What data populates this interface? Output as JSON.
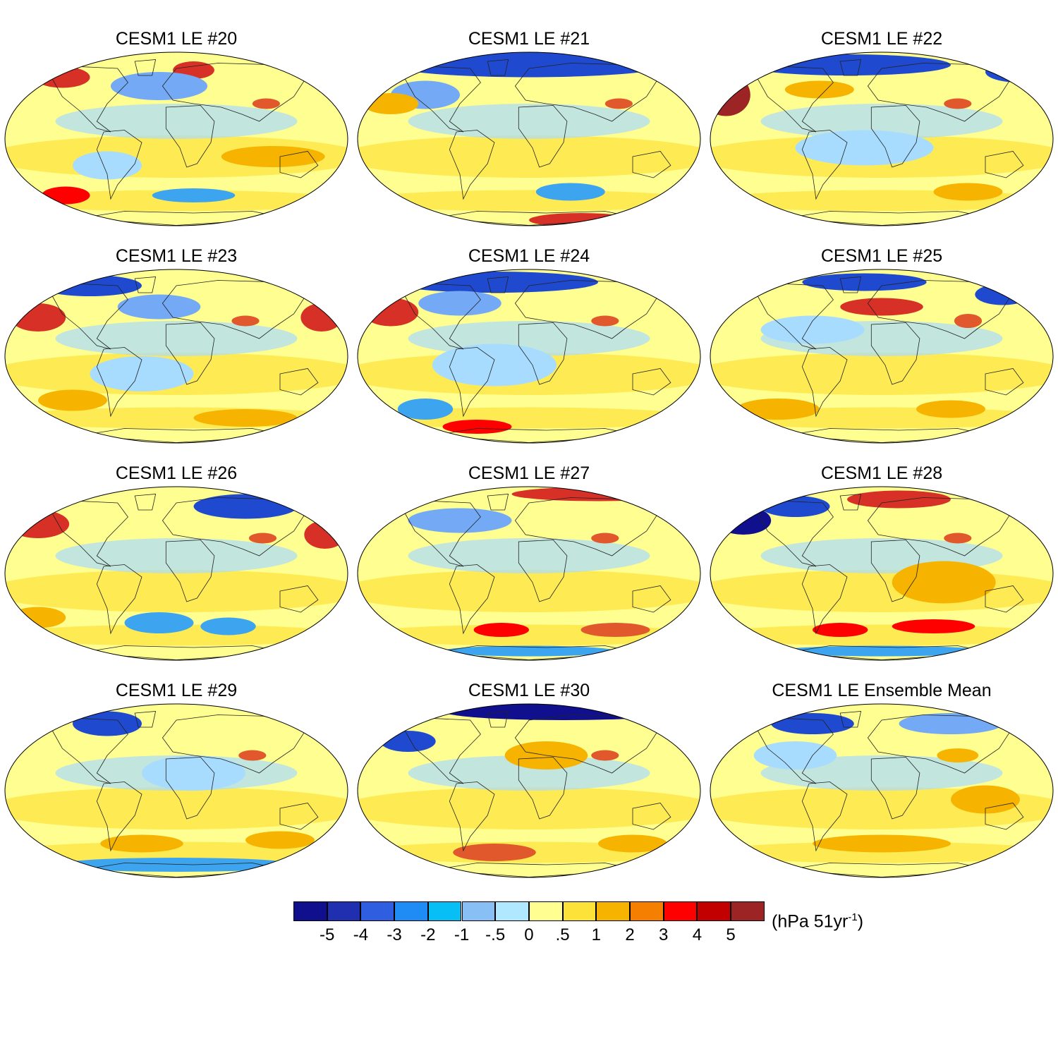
{
  "figure": {
    "panels": [
      {
        "title": "CESM1 LE #20",
        "blobs": [
          [
            "#d73027",
            0.17,
            0.15,
            0.08,
            0.06
          ],
          [
            "#d73027",
            0.55,
            0.11,
            0.06,
            0.05
          ],
          [
            "#74a9f5",
            0.45,
            0.2,
            0.14,
            0.08
          ],
          [
            "#e0582b",
            0.76,
            0.3,
            0.04,
            0.03
          ],
          [
            "#f6b400",
            0.78,
            0.6,
            0.15,
            0.06
          ],
          [
            "#fe0000",
            0.18,
            0.82,
            0.07,
            0.05
          ],
          [
            "#3da4f0",
            0.55,
            0.82,
            0.12,
            0.04
          ],
          [
            "#a8dcff",
            0.3,
            0.65,
            0.1,
            0.08
          ]
        ]
      },
      {
        "title": "CESM1 LE #21",
        "blobs": [
          [
            "#1f4ad0",
            0.5,
            0.08,
            0.4,
            0.07
          ],
          [
            "#74a9f5",
            0.2,
            0.25,
            0.1,
            0.08
          ],
          [
            "#e0582b",
            0.76,
            0.3,
            0.04,
            0.03
          ],
          [
            "#3da4f0",
            0.62,
            0.8,
            0.1,
            0.05
          ],
          [
            "#d73027",
            0.65,
            0.96,
            0.15,
            0.04
          ],
          [
            "#f6b400",
            0.1,
            0.3,
            0.08,
            0.06
          ]
        ]
      },
      {
        "title": "CESM1 LE #22",
        "blobs": [
          [
            "#9c2424",
            0.05,
            0.25,
            0.07,
            0.12
          ],
          [
            "#1f4ad0",
            0.4,
            0.08,
            0.3,
            0.06
          ],
          [
            "#1f4ad0",
            0.9,
            0.12,
            0.1,
            0.06
          ],
          [
            "#f6b400",
            0.32,
            0.22,
            0.1,
            0.05
          ],
          [
            "#e0582b",
            0.72,
            0.3,
            0.04,
            0.03
          ],
          [
            "#f6b400",
            0.75,
            0.8,
            0.1,
            0.05
          ],
          [
            "#a8dcff",
            0.45,
            0.55,
            0.2,
            0.1
          ]
        ]
      },
      {
        "title": "CESM1 LE #23",
        "blobs": [
          [
            "#d73027",
            0.1,
            0.28,
            0.08,
            0.08
          ],
          [
            "#d73027",
            0.92,
            0.28,
            0.06,
            0.08
          ],
          [
            "#1f4ad0",
            0.25,
            0.1,
            0.15,
            0.06
          ],
          [
            "#74a9f5",
            0.45,
            0.22,
            0.12,
            0.07
          ],
          [
            "#e0582b",
            0.7,
            0.3,
            0.04,
            0.03
          ],
          [
            "#f6b400",
            0.2,
            0.75,
            0.1,
            0.06
          ],
          [
            "#f6b400",
            0.7,
            0.85,
            0.15,
            0.05
          ],
          [
            "#a8dcff",
            0.4,
            0.6,
            0.15,
            0.1
          ]
        ]
      },
      {
        "title": "CESM1 LE #24",
        "blobs": [
          [
            "#d73027",
            0.1,
            0.25,
            0.08,
            0.08
          ],
          [
            "#1f4ad0",
            0.4,
            0.08,
            0.3,
            0.06
          ],
          [
            "#74a9f5",
            0.3,
            0.2,
            0.12,
            0.07
          ],
          [
            "#e0582b",
            0.72,
            0.3,
            0.04,
            0.03
          ],
          [
            "#fe0000",
            0.35,
            0.9,
            0.1,
            0.04
          ],
          [
            "#3da4f0",
            0.2,
            0.8,
            0.08,
            0.06
          ],
          [
            "#a8dcff",
            0.4,
            0.55,
            0.18,
            0.12
          ]
        ]
      },
      {
        "title": "CESM1 LE #25",
        "blobs": [
          [
            "#d73027",
            0.5,
            0.22,
            0.12,
            0.05
          ],
          [
            "#1f4ad0",
            0.45,
            0.08,
            0.18,
            0.05
          ],
          [
            "#1f4ad0",
            0.85,
            0.15,
            0.08,
            0.06
          ],
          [
            "#e0582b",
            0.75,
            0.3,
            0.04,
            0.04
          ],
          [
            "#f6b400",
            0.2,
            0.8,
            0.12,
            0.06
          ],
          [
            "#f6b400",
            0.7,
            0.8,
            0.1,
            0.05
          ],
          [
            "#a8dcff",
            0.3,
            0.35,
            0.15,
            0.08
          ]
        ]
      },
      {
        "title": "CESM1 LE #26",
        "blobs": [
          [
            "#d73027",
            0.1,
            0.22,
            0.09,
            0.08
          ],
          [
            "#d73027",
            0.93,
            0.28,
            0.06,
            0.08
          ],
          [
            "#1f4ad0",
            0.7,
            0.12,
            0.15,
            0.07
          ],
          [
            "#e0582b",
            0.75,
            0.3,
            0.04,
            0.03
          ],
          [
            "#3da4f0",
            0.45,
            0.78,
            0.1,
            0.06
          ],
          [
            "#3da4f0",
            0.65,
            0.8,
            0.08,
            0.05
          ],
          [
            "#f6b400",
            0.1,
            0.75,
            0.08,
            0.06
          ]
        ]
      },
      {
        "title": "CESM1 LE #27",
        "blobs": [
          [
            "#d73027",
            0.7,
            0.05,
            0.25,
            0.04
          ],
          [
            "#74a9f5",
            0.3,
            0.2,
            0.15,
            0.07
          ],
          [
            "#e0582b",
            0.72,
            0.3,
            0.04,
            0.03
          ],
          [
            "#fe0000",
            0.42,
            0.82,
            0.08,
            0.04
          ],
          [
            "#e0582b",
            0.75,
            0.82,
            0.1,
            0.04
          ],
          [
            "#3da4f0",
            0.5,
            0.94,
            0.25,
            0.03
          ]
        ]
      },
      {
        "title": "CESM1 LE #28",
        "blobs": [
          [
            "#10108f",
            0.1,
            0.2,
            0.08,
            0.08
          ],
          [
            "#d73027",
            0.55,
            0.08,
            0.15,
            0.05
          ],
          [
            "#1f4ad0",
            0.25,
            0.12,
            0.1,
            0.06
          ],
          [
            "#e0582b",
            0.72,
            0.3,
            0.04,
            0.03
          ],
          [
            "#f6b400",
            0.68,
            0.55,
            0.15,
            0.12
          ],
          [
            "#fe0000",
            0.38,
            0.82,
            0.08,
            0.04
          ],
          [
            "#fe0000",
            0.65,
            0.8,
            0.12,
            0.04
          ],
          [
            "#3da4f0",
            0.5,
            0.94,
            0.3,
            0.03
          ]
        ]
      },
      {
        "title": "CESM1 LE #29",
        "blobs": [
          [
            "#1f4ad0",
            0.3,
            0.12,
            0.1,
            0.07
          ],
          [
            "#e0582b",
            0.72,
            0.3,
            0.04,
            0.03
          ],
          [
            "#f6b400",
            0.4,
            0.8,
            0.12,
            0.05
          ],
          [
            "#f6b400",
            0.8,
            0.78,
            0.1,
            0.05
          ],
          [
            "#3da4f0",
            0.5,
            0.92,
            0.35,
            0.04
          ],
          [
            "#a8dcff",
            0.55,
            0.4,
            0.15,
            0.1
          ]
        ]
      },
      {
        "title": "CESM1 LE #30",
        "blobs": [
          [
            "#10108f",
            0.6,
            0.05,
            0.35,
            0.05
          ],
          [
            "#1f4ad0",
            0.15,
            0.22,
            0.08,
            0.06
          ],
          [
            "#e0582b",
            0.72,
            0.3,
            0.04,
            0.03
          ],
          [
            "#f6b400",
            0.55,
            0.3,
            0.12,
            0.08
          ],
          [
            "#e0582b",
            0.4,
            0.85,
            0.12,
            0.05
          ],
          [
            "#f6b400",
            0.8,
            0.8,
            0.1,
            0.05
          ]
        ]
      },
      {
        "title": "CESM1 LE Ensemble Mean",
        "blobs": [
          [
            "#1f4ad0",
            0.3,
            0.12,
            0.12,
            0.06
          ],
          [
            "#74a9f5",
            0.7,
            0.12,
            0.15,
            0.06
          ],
          [
            "#f6b400",
            0.72,
            0.3,
            0.06,
            0.04
          ],
          [
            "#a8dcff",
            0.25,
            0.3,
            0.12,
            0.08
          ],
          [
            "#f6b400",
            0.5,
            0.8,
            0.2,
            0.05
          ],
          [
            "#f6b400",
            0.8,
            0.55,
            0.1,
            0.08
          ]
        ]
      }
    ],
    "colorbar": {
      "colors": [
        "#10108f",
        "#1f2fb0",
        "#2f5fe0",
        "#1f8cf5",
        "#07bff5",
        "#88bff5",
        "#b0e8ff",
        "#fffe90",
        "#fde23a",
        "#f6b400",
        "#f57f00",
        "#fe0000",
        "#c30000",
        "#9c2424"
      ],
      "tick_labels": [
        "-5",
        "-4",
        "-3",
        "-2",
        "-1",
        "-.5",
        "0",
        ".5",
        "1",
        "2",
        "3",
        "4",
        "5"
      ],
      "units_main": "(hPa 51yr",
      "units_sup": "-1",
      "units_close": ")"
    }
  }
}
